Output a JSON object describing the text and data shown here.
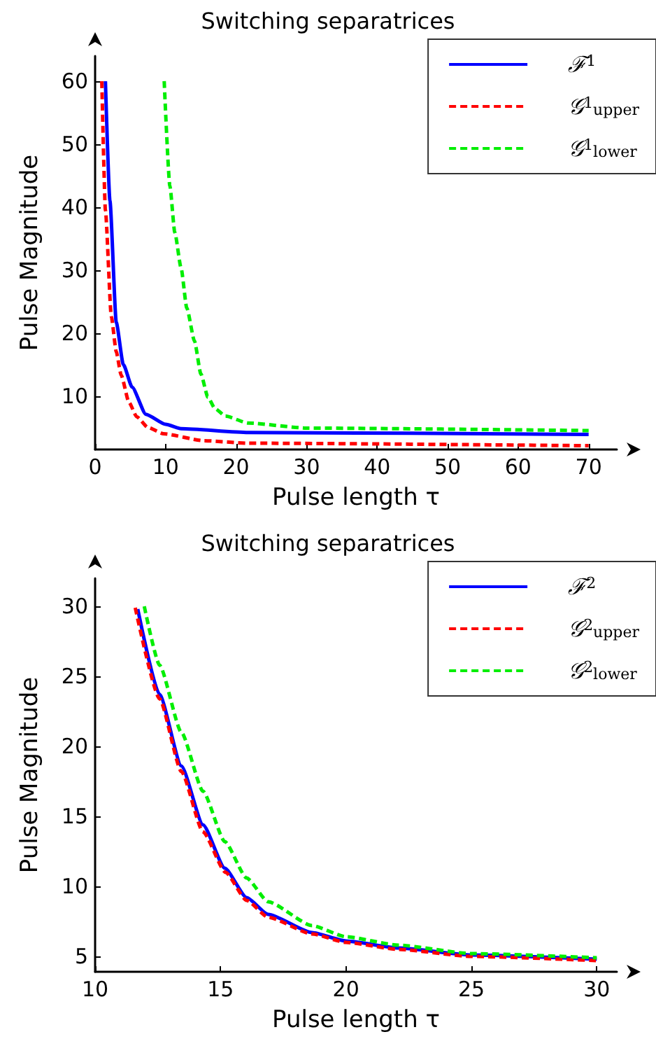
{
  "chart_data": [
    {
      "type": "line",
      "title": "Switching separatrices",
      "xlabel": "Pulse length τ",
      "ylabel": "Pulse Magnitude",
      "xlim": [
        0,
        74
      ],
      "ylim": [
        1.5,
        64
      ],
      "xticks": [
        0,
        10,
        20,
        30,
        40,
        50,
        60,
        70
      ],
      "yticks": [
        10,
        20,
        30,
        40,
        50,
        60
      ],
      "grid": false,
      "legend": "top right",
      "marker": "none",
      "series": [
        {
          "name": "ℱ$^{1}$",
          "color": "#0000ff",
          "line_style": "solid",
          "x": [
            1.46,
            2.1,
            3.0,
            4,
            5.25,
            7.2,
            10,
            12.2,
            21.7,
            70
          ],
          "values": [
            60,
            41,
            21.7,
            15,
            11.4,
            7.1,
            5.5,
            4.8,
            4.2,
            3.9
          ]
        },
        {
          "name": "𝒢$^{1}$$_{upper}$",
          "color": "#ff0000",
          "line_style": "dashed",
          "x": [
            0.95,
            1.46,
            2.3,
            3,
            3.7,
            4.8,
            5.9,
            7.5,
            9.7,
            15.4,
            21.7,
            70
          ],
          "values": [
            60,
            39.5,
            22.6,
            17,
            13.3,
            9,
            6.7,
            5,
            4.0,
            2.9,
            2.5,
            2.1
          ]
        },
        {
          "name": "𝒢$^{1}$$_{lower}$",
          "color": "#00ee00",
          "line_style": "dashed",
          "x": [
            9.8,
            10.6,
            11.3,
            12.2,
            13,
            14.1,
            15,
            16,
            17,
            18.5,
            21.7,
            30,
            70
          ],
          "values": [
            60,
            43.4,
            36,
            30.3,
            24,
            18.7,
            13.5,
            9.8,
            8,
            6.8,
            5.7,
            4.9,
            4.5
          ]
        }
      ]
    },
    {
      "type": "line",
      "title": "Switching separatrices",
      "xlabel": "Pulse length τ",
      "ylabel": "Pulse Magnitude",
      "xlim": [
        10,
        30.8
      ],
      "ylim": [
        3.9,
        32
      ],
      "xticks": [
        10,
        15,
        20,
        25,
        30
      ],
      "yticks": [
        5,
        10,
        15,
        20,
        25,
        30
      ],
      "grid": false,
      "legend": "top right",
      "marker": "none",
      "series": [
        {
          "name": "ℱ$^{2}$",
          "color": "#0000ff",
          "line_style": "solid",
          "x": [
            11.7,
            12.57,
            13.44,
            14.3,
            15.17,
            16.04,
            16.9,
            18.65,
            20,
            22.1,
            25,
            30
          ],
          "values": [
            29.8,
            23.7,
            18.6,
            14.4,
            11.3,
            9.2,
            8.0,
            6.7,
            6.1,
            5.6,
            5.1,
            4.8
          ]
        },
        {
          "name": "𝒢$^{2}$$_{upper}$",
          "color": "#ff0000",
          "line_style": "dashed",
          "x": [
            11.6,
            12.57,
            13.44,
            14.3,
            15.2,
            16.04,
            16.9,
            18.65,
            20,
            22.1,
            25,
            30
          ],
          "values": [
            29.9,
            23.4,
            18.2,
            13.9,
            11.0,
            9.0,
            7.8,
            6.6,
            6.0,
            5.5,
            5.0,
            4.7
          ]
        },
        {
          "name": "𝒢$^{2}$$_{lower}$",
          "color": "#00ee00",
          "line_style": "dashed",
          "x": [
            11.96,
            12.57,
            13.44,
            14.3,
            15.17,
            16.04,
            16.9,
            18.65,
            20,
            22.1,
            25,
            30
          ],
          "values": [
            30,
            25.8,
            21,
            16.8,
            13.2,
            10.6,
            8.9,
            7.2,
            6.4,
            5.8,
            5.2,
            4.9
          ]
        }
      ]
    }
  ]
}
